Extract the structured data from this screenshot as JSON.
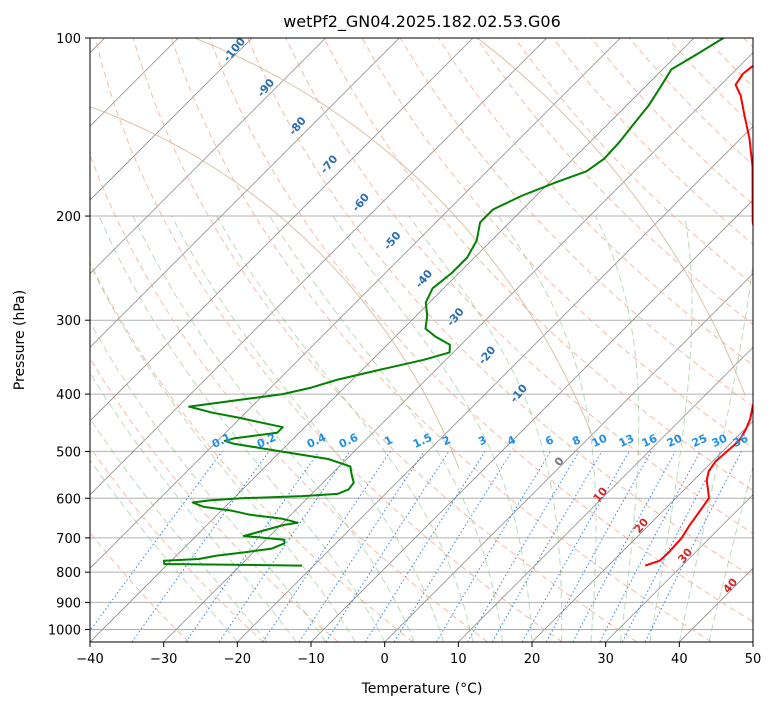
{
  "chart_data": {
    "type": "line",
    "subtype": "skew-t log-p",
    "title": "wetPf2_GN04.2025.182.02.53.G06",
    "xlabel": "Temperature (°C)",
    "ylabel": "Pressure (hPa)",
    "xlim": [
      -40,
      50
    ],
    "ylim": [
      1050,
      100
    ],
    "y_scale": "log",
    "grid": true,
    "x_ticks": [
      -40,
      -30,
      -20,
      -10,
      0,
      10,
      20,
      30,
      40,
      50
    ],
    "x_tick_labels": [
      "−40",
      "−30",
      "−20",
      "−10",
      "0",
      "10",
      "20",
      "30",
      "40",
      "50"
    ],
    "y_ticks": [
      100,
      200,
      300,
      400,
      500,
      600,
      700,
      800,
      900,
      1000
    ],
    "y_tick_labels": [
      "100",
      "200",
      "300",
      "400",
      "500",
      "600",
      "700",
      "800",
      "900",
      "1000"
    ],
    "series": [
      {
        "role": "temperature",
        "color": "#ff0000",
        "points": [
          [
            25.0,
            780
          ],
          [
            26.3,
            765
          ],
          [
            26.4,
            740
          ],
          [
            26.2,
            700
          ],
          [
            25.6,
            670
          ],
          [
            25.0,
            630
          ],
          [
            24.5,
            600
          ],
          [
            23.2,
            580
          ],
          [
            21.8,
            560
          ],
          [
            20.8,
            540
          ],
          [
            20.4,
            520
          ],
          [
            20.6,
            500
          ],
          [
            20.8,
            480
          ],
          [
            20.2,
            460
          ],
          [
            19.3,
            440
          ],
          [
            18.0,
            420
          ],
          [
            16.8,
            400
          ],
          [
            15.6,
            380
          ],
          [
            14.2,
            355
          ],
          [
            12.5,
            330
          ],
          [
            10.5,
            305
          ],
          [
            8.0,
            285
          ],
          [
            5.0,
            265
          ],
          [
            1.0,
            245
          ],
          [
            -3.0,
            225
          ],
          [
            -7.0,
            205
          ],
          [
            -10.6,
            185
          ],
          [
            -14.6,
            165
          ],
          [
            -18.8,
            148
          ],
          [
            -22.7,
            135
          ],
          [
            -25.9,
            125
          ],
          [
            -28.0,
            120
          ],
          [
            -28.5,
            115
          ],
          [
            -28.1,
            110
          ],
          [
            -28.0,
            105
          ],
          [
            -28.3,
            100
          ]
        ]
      },
      {
        "role": "dewpoint",
        "color": "#008000",
        "points": [
          [
            -21.6,
            780
          ],
          [
            -40.5,
            775
          ],
          [
            -41.0,
            765
          ],
          [
            -36.5,
            760
          ],
          [
            -34.5,
            750
          ],
          [
            -31.0,
            740
          ],
          [
            -28.0,
            730
          ],
          [
            -27.0,
            715
          ],
          [
            -27.5,
            705
          ],
          [
            -33.5,
            695
          ],
          [
            -31.5,
            680
          ],
          [
            -29.5,
            665
          ],
          [
            -28.0,
            660
          ],
          [
            -30.6,
            650
          ],
          [
            -35.5,
            640
          ],
          [
            -38.5,
            630
          ],
          [
            -43.0,
            620
          ],
          [
            -45.0,
            610
          ],
          [
            -43.0,
            605
          ],
          [
            -39.0,
            600
          ],
          [
            -31.0,
            595
          ],
          [
            -26.5,
            590
          ],
          [
            -25.6,
            580
          ],
          [
            -25.8,
            565
          ],
          [
            -27.0,
            550
          ],
          [
            -28.5,
            530
          ],
          [
            -32.5,
            515
          ],
          [
            -40.0,
            500
          ],
          [
            -47.5,
            485
          ],
          [
            -49.0,
            480
          ],
          [
            -48.0,
            475
          ],
          [
            -43.0,
            465
          ],
          [
            -43.0,
            455
          ],
          [
            -50.5,
            438
          ],
          [
            -54.5,
            430
          ],
          [
            -58.5,
            420
          ],
          [
            -53.0,
            410
          ],
          [
            -47.5,
            400
          ],
          [
            -44.5,
            390
          ],
          [
            -42.0,
            378
          ],
          [
            -38.0,
            365
          ],
          [
            -33.0,
            350
          ],
          [
            -30.5,
            340
          ],
          [
            -31.5,
            330
          ],
          [
            -34.5,
            320
          ],
          [
            -37.0,
            310
          ],
          [
            -38.5,
            295
          ],
          [
            -40.5,
            280
          ],
          [
            -41.5,
            265
          ],
          [
            -41.0,
            250
          ],
          [
            -41.0,
            235
          ],
          [
            -42.0,
            220
          ],
          [
            -44.0,
            205
          ],
          [
            -44.0,
            195
          ],
          [
            -42.0,
            185
          ],
          [
            -39.0,
            175
          ],
          [
            -36.5,
            168
          ],
          [
            -35.8,
            160
          ],
          [
            -36.0,
            150
          ],
          [
            -36.5,
            140
          ],
          [
            -37.0,
            130
          ],
          [
            -38.0,
            120
          ],
          [
            -38.8,
            113
          ],
          [
            -37.5,
            107
          ],
          [
            -36.0,
            100
          ]
        ]
      }
    ],
    "reference_lines": {
      "dry_adiabat_labels": [
        "-100",
        "-90",
        "-80",
        "-70",
        "-60",
        "-50",
        "-40",
        "-30",
        "-20",
        "-10"
      ],
      "mixing_ratio_labels": [
        "0.1",
        "0.2",
        "0.4",
        "0.6",
        "1",
        "1.5",
        "2",
        "3",
        "4",
        "6",
        "8",
        "10",
        "13",
        "16",
        "20",
        "25",
        "30",
        "36"
      ],
      "moist_adiabat_labels": [
        "0",
        "10",
        "20",
        "30",
        "40"
      ]
    },
    "colors": {
      "temperature": "#ff0000",
      "dewpoint": "#008000",
      "dry_adiabat": "#f4a582",
      "moist_adiabat": "#7fbf7b",
      "mixing_ratio": "#1f77e4",
      "dry_adiabat_label": "#2a6db0",
      "mixing_ratio_label": "#1f8fe8",
      "moist_adiabat_label": "#d62728",
      "isotherm": "#8c8c8c",
      "grid": "#b0b0b0",
      "alt_curve": "#d2b48c"
    }
  }
}
